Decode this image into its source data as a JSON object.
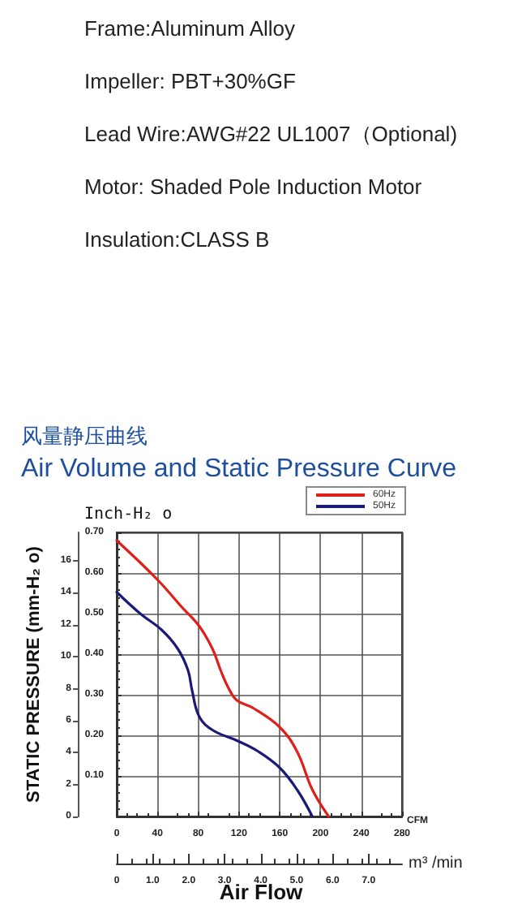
{
  "chart_data": {
    "type": "line",
    "title": "风量静压曲线",
    "subtitle": "Air Volume and Static Pressure Curve",
    "annotations": [
      "Frame:Aluminum Alloy",
      "Impeller: PBT+30%GF",
      "Lead Wire:AWG#22 UL1007（Optional)",
      "Motor: Shaded Pole Induction Motor",
      "Insulation:CLASS B",
      "Air Flow"
    ],
    "xlabel": "CFM",
    "x2label": "m³ /min",
    "ylabel": "Inch-H₂ o",
    "y2label": "STATIC PRESSURE (mm-H₂ o)",
    "series": [
      {
        "name": "60Hz",
        "color": "#e02018",
        "x": [
          0,
          39,
          65,
          81,
          94,
          102,
          110,
          118,
          134,
          160,
          177,
          192,
          208
        ],
        "values": [
          0.68,
          0.586,
          0.513,
          0.469,
          0.413,
          0.36,
          0.315,
          0.286,
          0.267,
          0.22,
          0.16,
          0.066,
          0
        ]
      },
      {
        "name": "50Hz",
        "color": "#1c1a78",
        "x": [
          0,
          23,
          44,
          60,
          70,
          74,
          81,
          94,
          118,
          139,
          160,
          177,
          192
        ],
        "values": [
          0.553,
          0.5,
          0.46,
          0.413,
          0.36,
          0.31,
          0.246,
          0.213,
          0.187,
          0.16,
          0.12,
          0.066,
          0
        ]
      }
    ],
    "xlim": [
      0,
      280
    ],
    "xticks": [
      0,
      40,
      80,
      120,
      160,
      200,
      240,
      280
    ],
    "ylim": [
      0,
      0.7
    ],
    "yticks": [
      {
        "value": 0,
        "label": null
      },
      {
        "value": 0.1,
        "label": "0.10"
      },
      {
        "value": 0.2,
        "label": "0.20"
      },
      {
        "value": 0.3,
        "label": "0.30"
      },
      {
        "value": 0.4,
        "label": "0.40"
      },
      {
        "value": 0.5,
        "label": "0.50"
      },
      {
        "value": 0.6,
        "label": "0.60"
      },
      {
        "value": 0.7,
        "label": "0.70"
      }
    ],
    "y2lim": [
      0,
      17.78
    ],
    "y2ticks": [
      0,
      2,
      4,
      6,
      8,
      10,
      12,
      14,
      16
    ],
    "x2lim": [
      0,
      7.93
    ],
    "x2ticks": [
      0,
      {
        "value": 1,
        "label": "1.0"
      },
      {
        "value": 2,
        "label": "2.0"
      },
      {
        "value": 3,
        "label": "3.0"
      },
      {
        "value": 4,
        "label": "4.0"
      },
      {
        "value": 5,
        "label": "5.0"
      },
      {
        "value": 6,
        "label": "6.0"
      },
      {
        "value": 7,
        "label": "7.0"
      }
    ],
    "grid": true,
    "legend": "top right",
    "marker": "none",
    "line_style": "solid"
  }
}
